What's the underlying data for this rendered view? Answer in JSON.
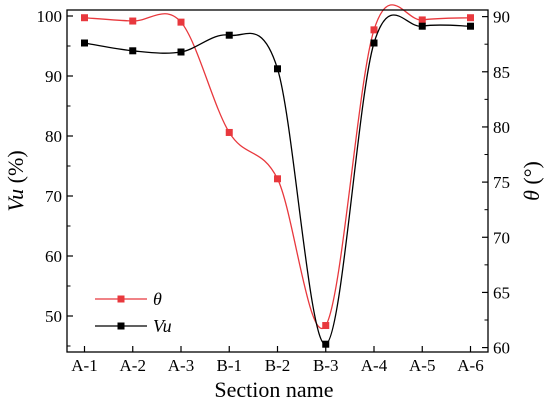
{
  "chart_data": {
    "type": "line",
    "categories": [
      "A-1",
      "A-2",
      "A-3",
      "B-1",
      "B-2",
      "B-3",
      "A-4",
      "A-5",
      "A-6"
    ],
    "xlabel": "Section name",
    "ylabel_left": {
      "italic": "Vu",
      "normal": " (%)"
    },
    "ylabel_right": {
      "italic": "θ",
      "normal": " (°)"
    },
    "ylim_left": [
      44,
      101
    ],
    "yticks_left": [
      50,
      60,
      70,
      80,
      90,
      100
    ],
    "ylim_right": [
      59.6,
      90.6
    ],
    "yticks_right": [
      60,
      65,
      70,
      75,
      80,
      85,
      90
    ],
    "grid": false,
    "legend_position": "bottom-left",
    "series": [
      {
        "name": "θ",
        "axis": "right",
        "color": "#e8383d",
        "marker": "square",
        "values": [
          89.9,
          89.6,
          89.5,
          79.5,
          75.3,
          62.0,
          88.8,
          89.7,
          89.9
        ]
      },
      {
        "name": "Vu",
        "axis": "left",
        "color": "#000000",
        "marker": "square",
        "values": [
          95.5,
          94.2,
          94.0,
          96.8,
          91.2,
          45.3,
          95.5,
          98.3,
          98.3
        ]
      }
    ]
  }
}
